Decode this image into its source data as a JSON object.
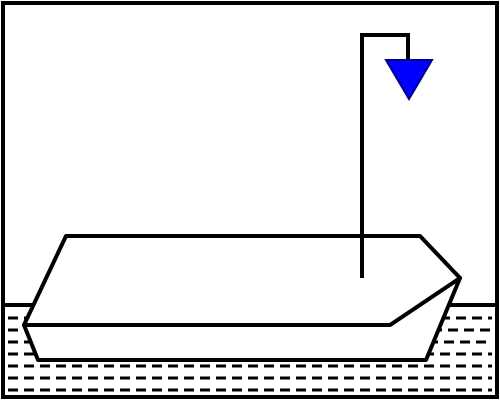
{
  "scene": {
    "colors": {
      "background": "#ffffff",
      "stroke": "#000000",
      "marker": "#0000ff"
    },
    "icons": {
      "marker": "blue-triangle-marker-icon"
    }
  }
}
